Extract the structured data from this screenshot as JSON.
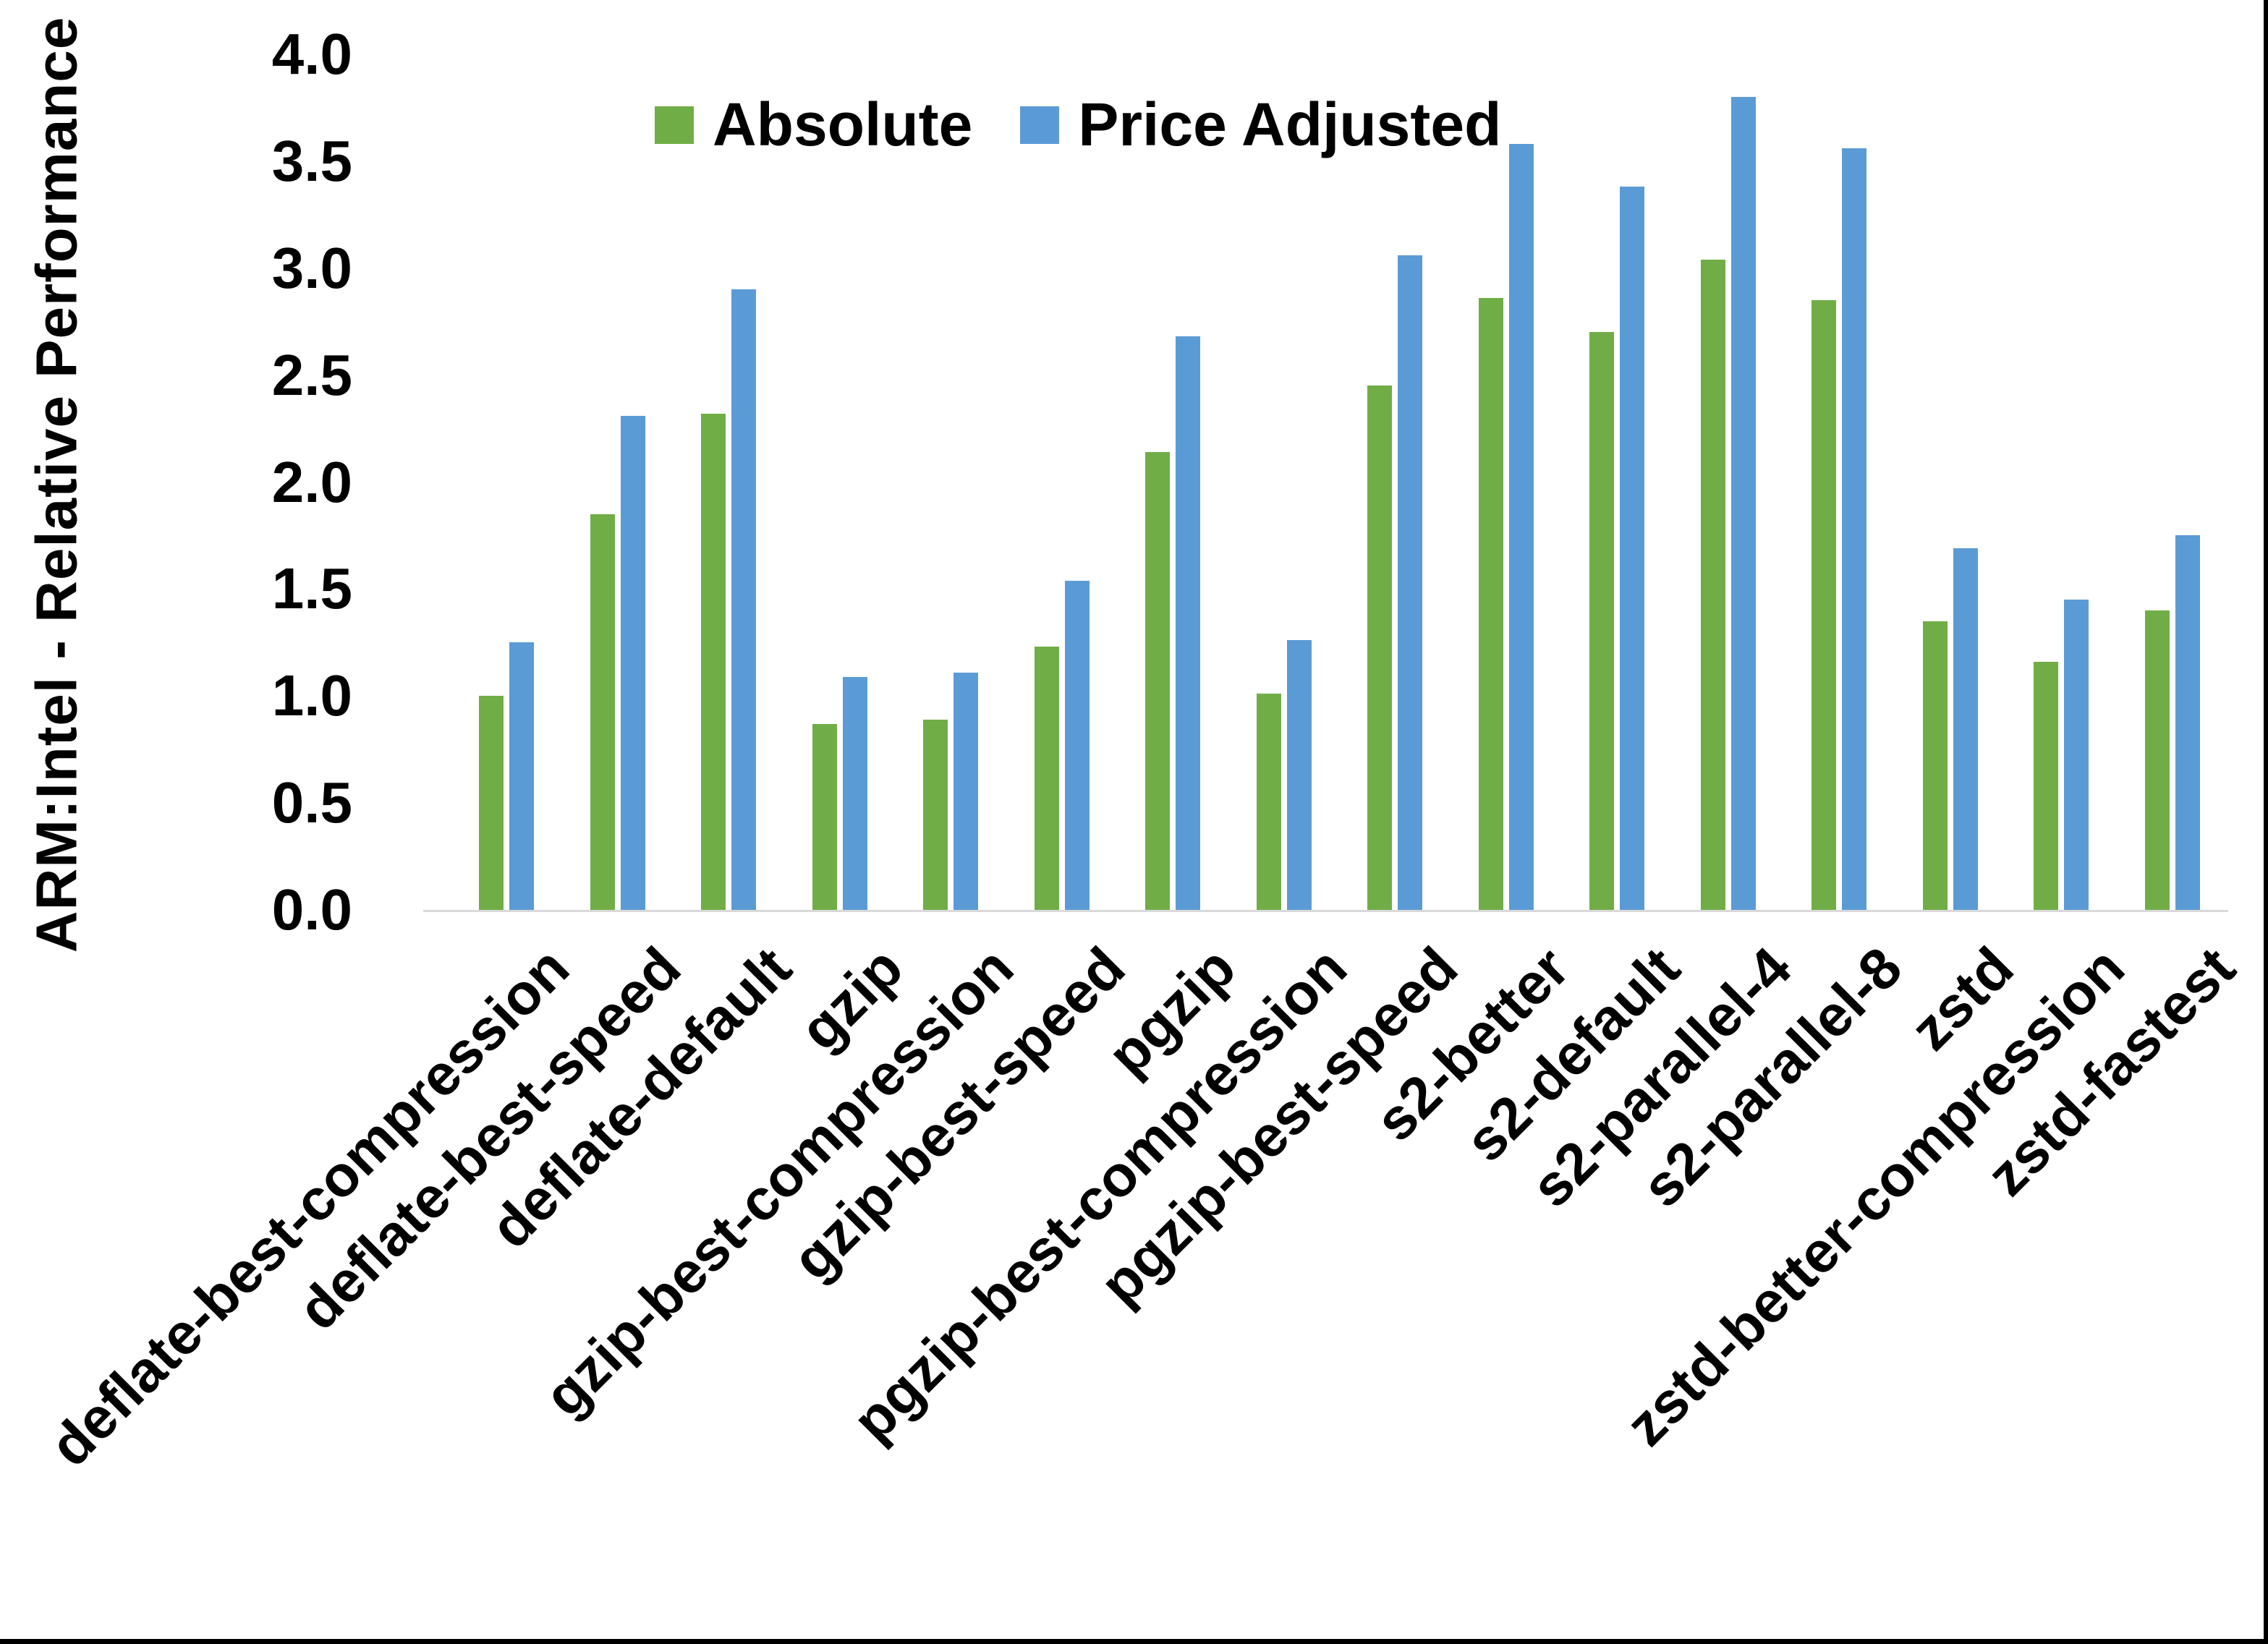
{
  "y_axis_title": "ARM:Intel - Relative Performance",
  "colors": {
    "absolute": "#70AD47",
    "price_adjusted": "#5B9BD5",
    "axis_line": "#D9D9D9",
    "text": "#000000",
    "background": "#FFFFFF",
    "frame": "#000000"
  },
  "chart_data": {
    "type": "bar",
    "title": "",
    "xlabel": "",
    "ylabel": "ARM:Intel - Relative Performance",
    "ylim": [
      0.0,
      4.0
    ],
    "y_ticks": [
      "0.0",
      "0.5",
      "1.0",
      "1.5",
      "2.0",
      "2.5",
      "3.0",
      "3.5",
      "4.0"
    ],
    "grid": false,
    "legend_position": "top-center",
    "categories": [
      "deflate-best-compression",
      "deflate-best-speed",
      "deflate-default",
      "gzip",
      "gzip-best-compression",
      "gzip-best-speed",
      "pgzip",
      "pgzip-best-compression",
      "pgzip-best-speed",
      "s2-better",
      "s2-default",
      "s2-parallel-4",
      "s2-parallel-8",
      "zstd",
      "zstd-better-compression",
      "zstd-fastest"
    ],
    "series": [
      {
        "name": "Absolute",
        "color": "#70AD47",
        "values": [
          1.0,
          1.85,
          2.32,
          0.87,
          0.89,
          1.23,
          2.14,
          1.01,
          2.45,
          2.86,
          2.7,
          3.04,
          2.85,
          1.35,
          1.16,
          1.4
        ]
      },
      {
        "name": "Price Adjusted",
        "color": "#5B9BD5",
        "values": [
          1.25,
          2.31,
          2.9,
          1.09,
          1.11,
          1.54,
          2.68,
          1.26,
          3.06,
          3.58,
          3.38,
          3.8,
          3.56,
          1.69,
          1.45,
          1.75
        ]
      }
    ]
  }
}
